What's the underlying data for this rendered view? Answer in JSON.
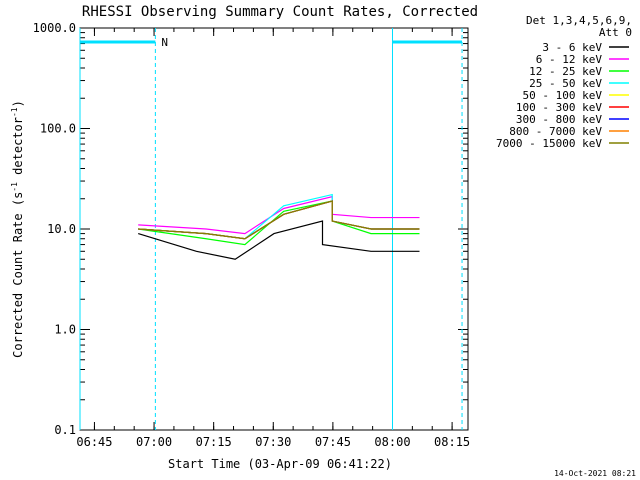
{
  "chart_data": {
    "type": "line",
    "title": "RHESSI Observing Summary Count Rates, Corrected",
    "xlabel": "Start Time (03-Apr-09 06:41:22)",
    "ylabel_main": "Corrected Count Rate (s",
    "ylabel_sup1": "-1",
    "ylabel_mid": " detector",
    "ylabel_sup2": "-1",
    "ylabel_end": ")",
    "y_scale": "log",
    "ylim": [
      0.1,
      1000
    ],
    "xlim": [
      "06:41:22",
      "08:19:00"
    ],
    "y_ticks": [
      "1000.0",
      "100.0",
      "10.0",
      "1.0",
      "0.1"
    ],
    "x_ticks": [
      "06:45",
      "07:00",
      "07:15",
      "07:30",
      "07:45",
      "08:00",
      "08:15"
    ],
    "legend_header": [
      "Det 1,3,4,5,6,9,",
      "Att 0"
    ],
    "legend_position": "right",
    "timestamp": "14-Oct-2021 08:21",
    "night_label": "N",
    "night_bars": [
      [
        "06:41:22",
        "07:00:20"
      ],
      [
        "08:00:00",
        "08:17:30"
      ]
    ],
    "markers_solid": [
      "06:41:22",
      "08:00:00"
    ],
    "markers_dashed": [
      "07:00:20",
      "08:17:30"
    ],
    "series": [
      {
        "name": "3 - 6 keV",
        "color": "#000000",
        "values": [
          [
            6,
            9
          ],
          [
            12,
            6
          ],
          [
            16,
            5
          ],
          [
            20,
            9
          ],
          [
            25,
            12
          ],
          [
            25,
            7
          ],
          [
            30,
            6
          ],
          [
            35,
            6
          ]
        ]
      },
      {
        "name": "6 - 12 keV",
        "color": "#ff00ff",
        "values": [
          [
            6,
            11
          ],
          [
            13,
            10
          ],
          [
            17,
            9
          ],
          [
            21,
            16
          ],
          [
            26,
            21
          ],
          [
            26,
            14
          ],
          [
            30,
            13
          ],
          [
            35,
            13
          ]
        ]
      },
      {
        "name": "12 - 25 keV",
        "color": "#00ff00",
        "values": [
          [
            6,
            10
          ],
          [
            13,
            8
          ],
          [
            17,
            7
          ],
          [
            21,
            15
          ],
          [
            26,
            19
          ],
          [
            26,
            12
          ],
          [
            30,
            9
          ],
          [
            35,
            9
          ]
        ]
      },
      {
        "name": "25 - 50 keV",
        "color": "#00ffff",
        "values": [
          [
            6,
            10
          ],
          [
            13,
            9
          ],
          [
            17,
            8
          ],
          [
            21,
            17
          ],
          [
            26,
            22
          ],
          [
            26,
            12
          ],
          [
            30,
            10
          ],
          [
            35,
            10
          ]
        ]
      },
      {
        "name": "50 - 100 keV",
        "color": "#ffff00",
        "values": [
          [
            6,
            10
          ],
          [
            13,
            9
          ],
          [
            17,
            8
          ],
          [
            21,
            14
          ],
          [
            26,
            19
          ],
          [
            26,
            12
          ],
          [
            30,
            10
          ],
          [
            35,
            10
          ]
        ]
      },
      {
        "name": "100 - 300 keV",
        "color": "#ff0000",
        "values": [
          [
            6,
            10
          ],
          [
            13,
            9
          ],
          [
            17,
            8
          ],
          [
            21,
            14
          ],
          [
            26,
            19
          ],
          [
            26,
            12
          ],
          [
            30,
            10
          ],
          [
            35,
            10
          ]
        ]
      },
      {
        "name": "300 - 800 keV",
        "color": "#0000ff",
        "values": [
          [
            6,
            10
          ],
          [
            13,
            9
          ],
          [
            17,
            8
          ],
          [
            21,
            14
          ],
          [
            26,
            19
          ],
          [
            26,
            12
          ],
          [
            30,
            10
          ],
          [
            35,
            10
          ]
        ]
      },
      {
        "name": "800 - 7000 keV",
        "color": "#ff8000",
        "values": [
          [
            6,
            10
          ],
          [
            13,
            9
          ],
          [
            17,
            8
          ],
          [
            21,
            14
          ],
          [
            26,
            19
          ],
          [
            26,
            12
          ],
          [
            30,
            10
          ],
          [
            35,
            10
          ]
        ]
      },
      {
        "name": "7000 - 15000 keV",
        "color": "#808000",
        "values": [
          [
            6,
            10
          ],
          [
            13,
            9
          ],
          [
            17,
            8
          ],
          [
            21,
            14
          ],
          [
            26,
            19
          ],
          [
            26,
            12
          ],
          [
            30,
            10
          ],
          [
            35,
            10
          ]
        ]
      }
    ]
  }
}
